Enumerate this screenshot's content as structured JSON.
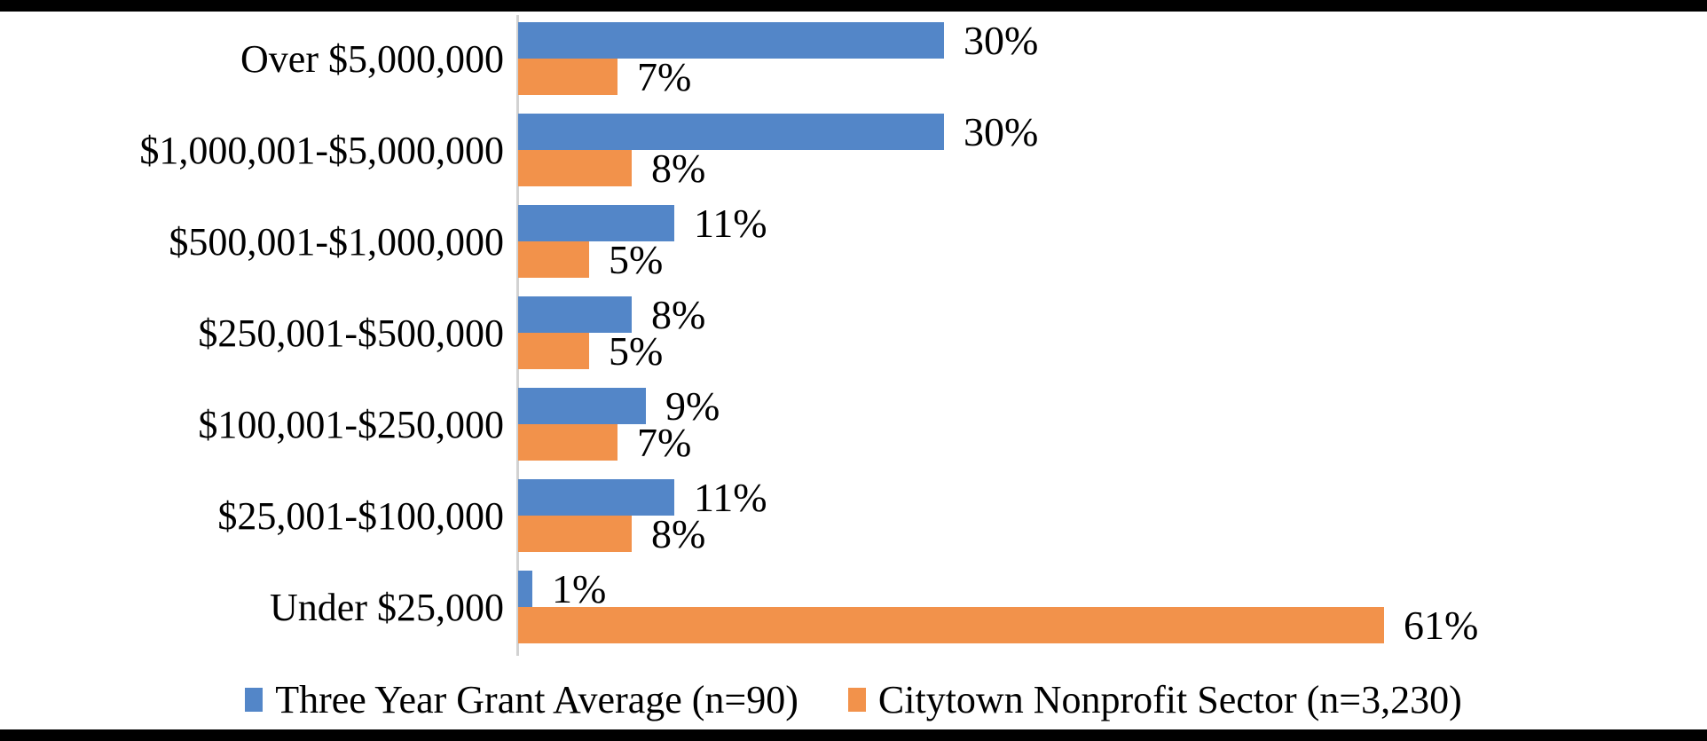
{
  "page": {
    "background": "#ffffff",
    "top_strip_color": "#000000",
    "bottom_strip_color": "#000000"
  },
  "chart_data": {
    "type": "bar",
    "orientation": "horizontal",
    "title": "",
    "xlabel": "",
    "ylabel": "",
    "categories": [
      "Over $5,000,000",
      "$1,000,001-$5,000,000",
      "$500,001-$1,000,000",
      "$250,001-$500,000",
      "$100,001-$250,000",
      "$25,001-$100,000",
      "Under $25,000"
    ],
    "series": [
      {
        "name": "Three Year Grant Average (n=90)",
        "color": "#5386C8",
        "values": [
          30,
          30,
          11,
          8,
          9,
          11,
          1
        ],
        "labels": [
          "30%",
          "30%",
          "11%",
          "8%",
          "9%",
          "11%",
          "1%"
        ]
      },
      {
        "name": "Citytown Nonprofit Sector (n=3,230)",
        "color": "#F2924B",
        "values": [
          7,
          8,
          5,
          5,
          7,
          8,
          61
        ],
        "labels": [
          "7%",
          "8%",
          "5%",
          "5%",
          "7%",
          "8%",
          "61%"
        ]
      }
    ],
    "value_suffix": "%",
    "xlim": [
      0,
      80
    ],
    "grid": false,
    "data_labels": true,
    "legend_position": "bottom-center",
    "axis_line_color": "#d2d2d2",
    "text_color": "#000000"
  }
}
